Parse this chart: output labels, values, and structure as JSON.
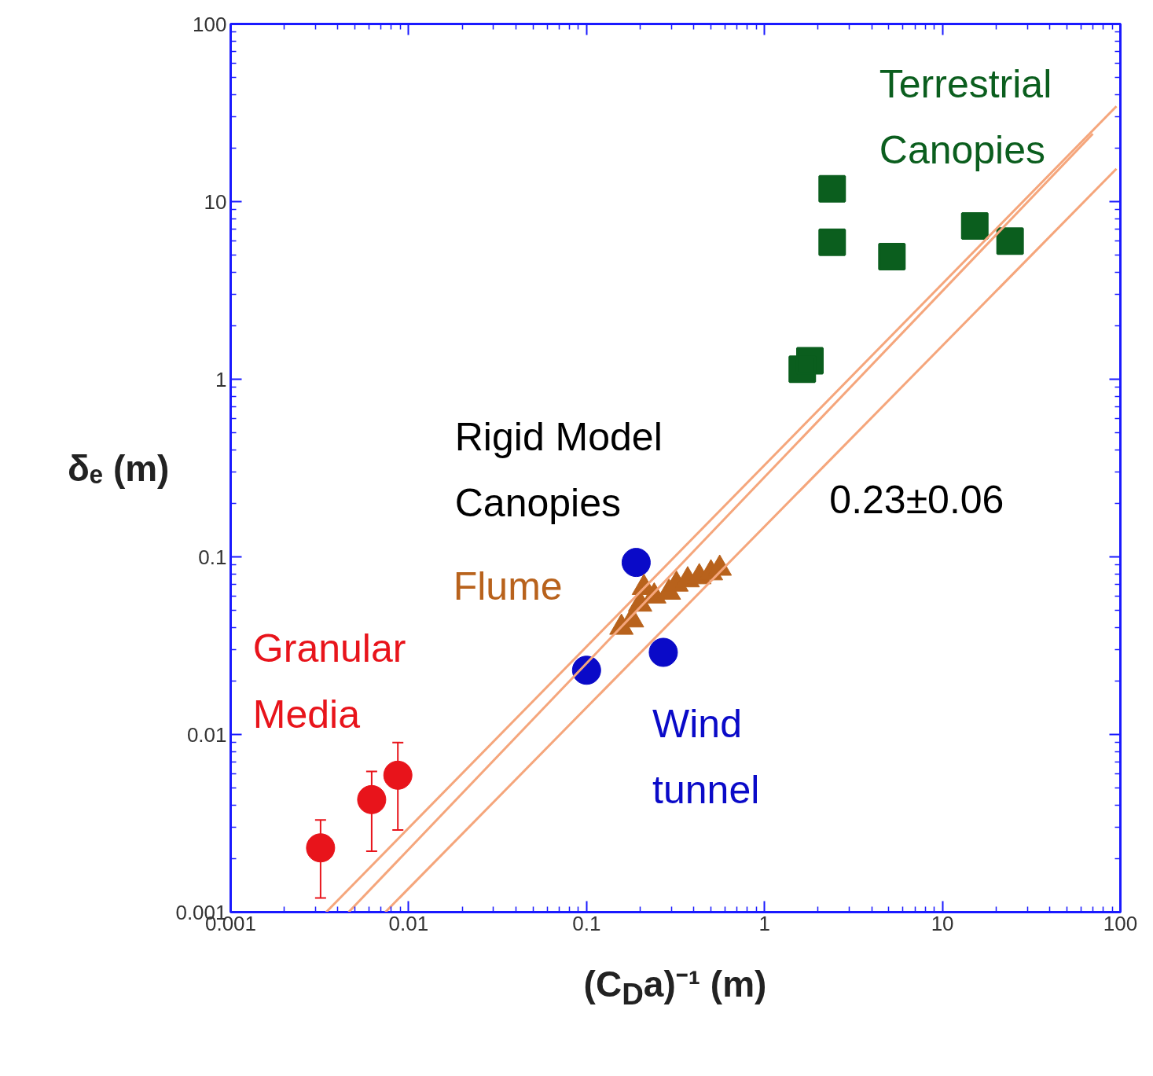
{
  "chart_data": {
    "type": "scatter",
    "xlabel": "(C$_{D}$a)⁻¹ (m)",
    "ylabel": "δₑ (m)",
    "log": "xy",
    "xlim": [
      0.001,
      100
    ],
    "ylim": [
      0.001,
      100
    ],
    "xticks": [
      0.001,
      0.01,
      0.1,
      1,
      10,
      100
    ],
    "yticks": [
      0.001,
      0.01,
      0.1,
      1,
      10,
      100
    ],
    "grid": false,
    "series": [
      {
        "name": "Granular Media",
        "type": "scatter",
        "marker": "circle",
        "color": "#e8141b",
        "x": [
          0.0032,
          0.0062,
          0.0087
        ],
        "values": [
          0.0023,
          0.0043,
          0.0059
        ],
        "errors": [
          [
            0.0012,
            0.0033
          ],
          [
            0.0022,
            0.0062
          ],
          [
            0.0029,
            0.009
          ]
        ]
      },
      {
        "name": "Wind tunnel",
        "type": "scatter",
        "marker": "circle",
        "color": "#0a0ac8",
        "x": [
          0.1,
          0.19,
          0.27
        ],
        "values": [
          0.023,
          0.093,
          0.029
        ]
      },
      {
        "name": "Flume",
        "type": "scatter",
        "marker": "triangle",
        "color": "#b8621c",
        "x": [
          0.157,
          0.18,
          0.2,
          0.21,
          0.24,
          0.29,
          0.32,
          0.37,
          0.43,
          0.5,
          0.56
        ],
        "values": [
          0.04,
          0.044,
          0.054,
          0.067,
          0.06,
          0.063,
          0.07,
          0.074,
          0.077,
          0.081,
          0.086
        ]
      },
      {
        "name": "Terrestrial Canopies",
        "type": "scatter",
        "marker": "square",
        "color": "#0b5e1e",
        "x": [
          2.4,
          2.4,
          5.2,
          15.2,
          24,
          1.63,
          1.8
        ],
        "values": [
          11.8,
          5.9,
          4.9,
          7.3,
          6.0,
          1.14,
          1.27
        ]
      },
      {
        "type": "line",
        "marker": "none",
        "color": "#f5a67c",
        "x": [
          0.00344,
          95
        ],
        "values": [
          0.001,
          34.4
        ]
      },
      {
        "type": "line",
        "marker": "none",
        "color": "#f5a67c",
        "x": [
          0.0046,
          70
        ],
        "values": [
          0.001,
          24.1
        ]
      },
      {
        "type": "line",
        "marker": "none",
        "color": "#f5a67c",
        "x": [
          0.0074,
          95
        ],
        "values": [
          0.001,
          15.3
        ]
      }
    ],
    "annotations": [
      "Rigid Model Canopies",
      "0.23±0.06"
    ]
  }
}
